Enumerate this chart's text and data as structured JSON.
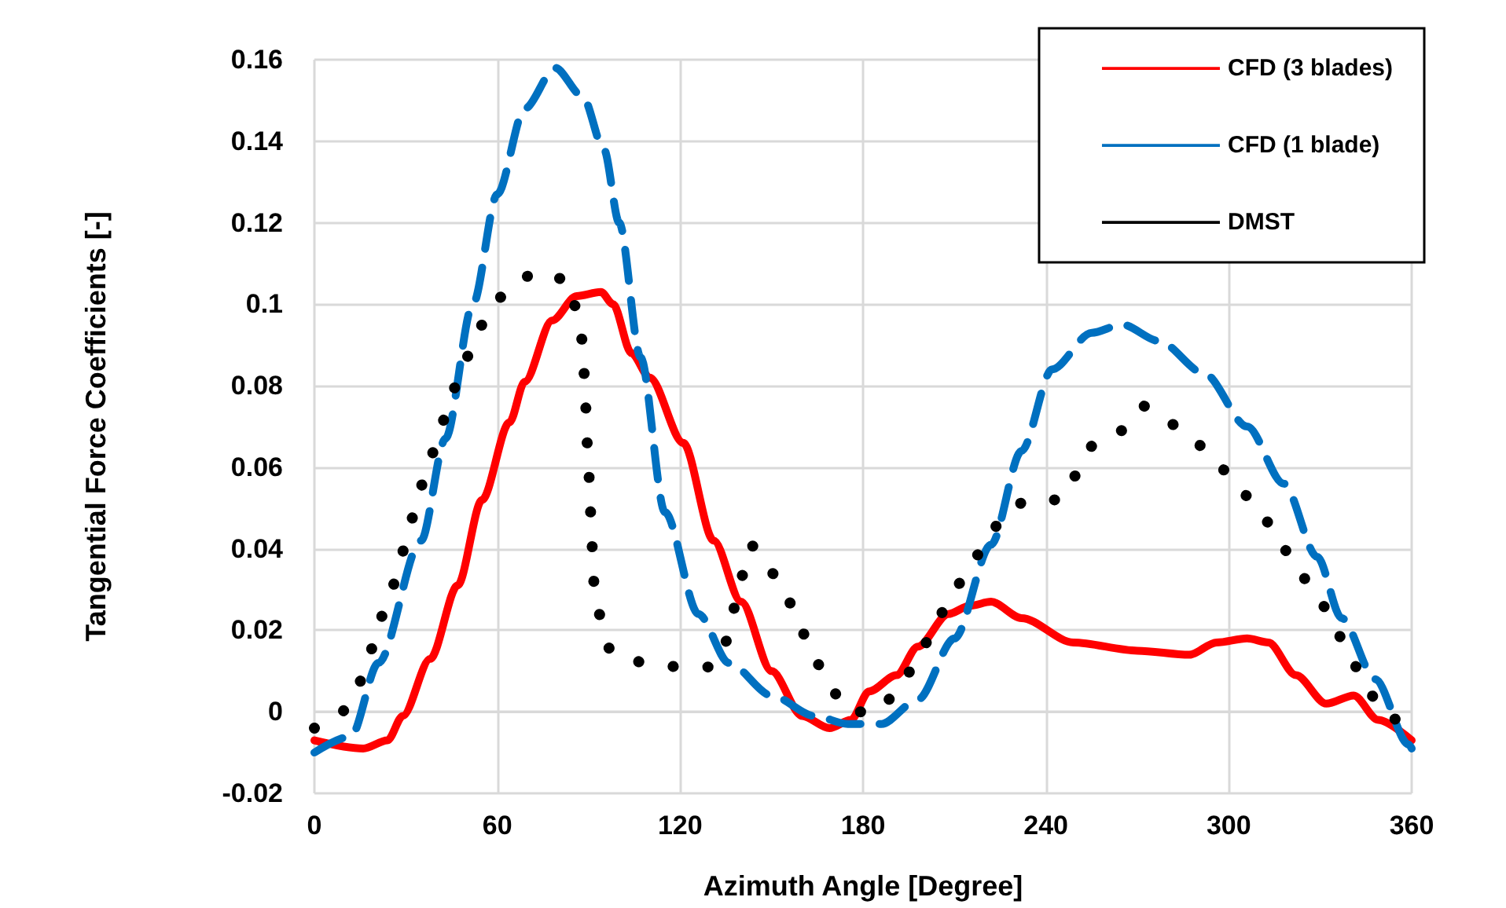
{
  "chart_data": {
    "type": "line",
    "xlabel": "Azimuth Angle [Degree]",
    "ylabel": "Tangential Force Coefficients [-]",
    "xlim": [
      0,
      360
    ],
    "xticks": [
      0,
      60,
      120,
      180,
      240,
      300,
      360
    ],
    "ylim": [
      -0.02,
      0.16
    ],
    "yticks": [
      -0.02,
      0,
      0.02,
      0.04,
      0.06,
      0.08,
      0.1,
      0.12,
      0.14,
      0.16
    ],
    "grid": true,
    "legend": "top right",
    "marker": "none",
    "series": [
      {
        "name": "CFD (3 blades)",
        "color": "#ff0000",
        "line_style": "solid",
        "x": [
          0,
          16,
          24,
          29,
          38,
          47,
          55,
          64,
          69,
          78,
          86,
          94,
          98,
          104,
          110,
          121,
          131,
          140,
          150,
          160,
          169,
          176,
          182,
          191,
          198,
          208,
          215,
          222,
          232,
          249,
          270,
          287,
          296,
          306,
          313,
          322,
          332,
          341,
          349,
          360
        ],
        "values": [
          -0.007,
          -0.009,
          -0.007,
          -0.001,
          0.013,
          0.031,
          0.052,
          0.071,
          0.081,
          0.096,
          0.102,
          0.103,
          0.1,
          0.088,
          0.082,
          0.066,
          0.042,
          0.027,
          0.01,
          -0.001,
          -0.004,
          -0.002,
          0.005,
          0.009,
          0.016,
          0.024,
          0.026,
          0.027,
          0.023,
          0.017,
          0.015,
          0.014,
          0.017,
          0.018,
          0.017,
          0.009,
          0.002,
          0.004,
          -0.002,
          -0.007
        ]
      },
      {
        "name": "CFD (1 blade)",
        "color": "#0070c0",
        "line_style": "dashed",
        "x": [
          0,
          12,
          21,
          35,
          43,
          52,
          60,
          69,
          79,
          88,
          95,
          100,
          107,
          115,
          126,
          136,
          150,
          164,
          175,
          186,
          198,
          210,
          222,
          232,
          242,
          255,
          265,
          277,
          292,
          306,
          318,
          329,
          337,
          348,
          359,
          360
        ],
        "values": [
          -0.01,
          -0.006,
          0.012,
          0.042,
          0.067,
          0.1,
          0.127,
          0.148,
          0.158,
          0.151,
          0.138,
          0.12,
          0.087,
          0.049,
          0.024,
          0.012,
          0.004,
          -0.001,
          -0.003,
          -0.003,
          0.003,
          0.018,
          0.041,
          0.064,
          0.084,
          0.093,
          0.095,
          0.091,
          0.083,
          0.07,
          0.056,
          0.038,
          0.023,
          0.008,
          -0.008,
          -0.009
        ]
      },
      {
        "name": "DMST",
        "color": "#000000",
        "line_style": "dotted",
        "x": [
          0,
          8,
          14,
          18,
          21,
          25,
          28,
          31,
          34,
          37,
          41,
          44,
          48,
          52,
          57,
          64,
          73,
          83,
          86,
          88,
          88.5,
          89,
          89.5,
          90,
          90.5,
          91,
          91.5,
          92,
          98,
          109,
          120,
          131,
          136,
          138,
          140,
          143,
          149,
          155,
          159,
          164,
          169,
          175,
          185,
          192,
          198,
          203,
          208,
          214,
          220,
          226,
          234,
          245,
          251,
          256,
          265,
          272,
          280,
          289,
          297,
          304,
          311,
          317,
          323,
          330,
          335,
          340,
          345,
          351,
          360
        ],
        "values": [
          -0.004,
          -0.001,
          0.006,
          0.014,
          0.022,
          0.029,
          0.037,
          0.045,
          0.053,
          0.06,
          0.068,
          0.076,
          0.083,
          0.09,
          0.098,
          0.104,
          0.108,
          0.106,
          0.099,
          0.091,
          0.083,
          0.075,
          0.066,
          0.059,
          0.05,
          0.042,
          0.034,
          0.026,
          0.014,
          0.012,
          0.011,
          0.011,
          0.018,
          0.026,
          0.033,
          0.041,
          0.035,
          0.028,
          0.021,
          0.013,
          0.006,
          0,
          0,
          0.006,
          0.013,
          0.02,
          0.027,
          0.034,
          0.041,
          0.048,
          0.052,
          0.052,
          0.059,
          0.066,
          0.069,
          0.075,
          0.071,
          0.066,
          0.06,
          0.054,
          0.048,
          0.041,
          0.034,
          0.027,
          0.02,
          0.013,
          0.006,
          -0.001,
          -0.004
        ]
      }
    ]
  }
}
